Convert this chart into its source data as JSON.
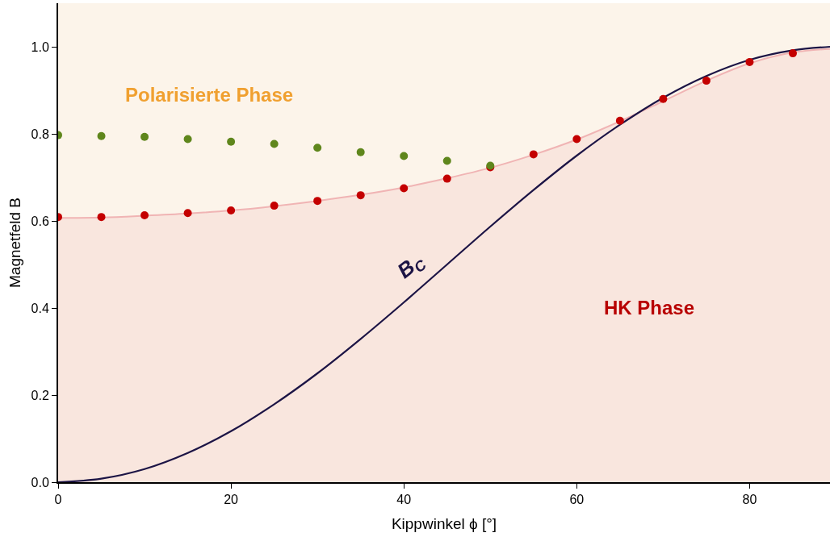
{
  "chart_data": {
    "type": "scatter",
    "xlabel": "Kippwinkel ϕ [°]",
    "ylabel": "Magnetfeld B",
    "xlim": [
      0,
      89.3
    ],
    "xticks": [
      0,
      20,
      40,
      60,
      80
    ],
    "ylim": [
      0,
      1.1
    ],
    "yticks": [
      {
        "value": 0,
        "label": "0.0"
      },
      {
        "value": 0.2,
        "label": "0.2"
      },
      {
        "value": 0.4,
        "label": "0.4"
      },
      {
        "value": 0.6,
        "label": "0.6"
      },
      {
        "value": 0.8,
        "label": "0.8"
      },
      {
        "value": 1.0,
        "label": "1.0"
      }
    ],
    "grid": false,
    "marker": "circle",
    "series": [
      {
        "type": "area",
        "marker": "none",
        "color": "#f0b4b4",
        "x": [
          0,
          5,
          10,
          15,
          20,
          25,
          30,
          35,
          40,
          45,
          50,
          55,
          60,
          65,
          70,
          75,
          80,
          85,
          89.3
        ],
        "values": [
          0.607,
          0.608,
          0.612,
          0.617,
          0.624,
          0.634,
          0.646,
          0.66,
          0.677,
          0.698,
          0.722,
          0.752,
          0.787,
          0.829,
          0.875,
          0.922,
          0.962,
          0.987,
          0.995
        ]
      },
      {
        "type": "line",
        "marker": "none",
        "color": "#1c1445",
        "x": [
          0,
          5,
          10,
          15,
          20,
          25,
          30,
          35,
          40,
          45,
          50,
          55,
          60,
          65,
          70,
          75,
          80,
          85,
          89.3
        ],
        "values": [
          0,
          0.008,
          0.03,
          0.067,
          0.117,
          0.179,
          0.25,
          0.329,
          0.413,
          0.5,
          0.587,
          0.671,
          0.75,
          0.821,
          0.883,
          0.933,
          0.97,
          0.992,
          1.0
        ]
      },
      {
        "color": "#c40000",
        "x": [
          0,
          5,
          10,
          15,
          20,
          25,
          30,
          35,
          40,
          45,
          50,
          55,
          60,
          65,
          70,
          75,
          80,
          85
        ],
        "values": [
          0.609,
          0.609,
          0.613,
          0.618,
          0.624,
          0.635,
          0.646,
          0.659,
          0.675,
          0.697,
          0.723,
          0.753,
          0.788,
          0.83,
          0.88,
          0.922,
          0.965,
          0.985
        ]
      },
      {
        "color": "#5f861c",
        "x": [
          0,
          5,
          10,
          15,
          20,
          25,
          30,
          35,
          40,
          45,
          50
        ],
        "values": [
          0.797,
          0.795,
          0.793,
          0.788,
          0.782,
          0.777,
          0.768,
          0.758,
          0.749,
          0.738,
          0.727
        ]
      }
    ],
    "annotations": [
      "Polarisierte Phase",
      "HK Phase",
      "B$_{C}$"
    ]
  }
}
